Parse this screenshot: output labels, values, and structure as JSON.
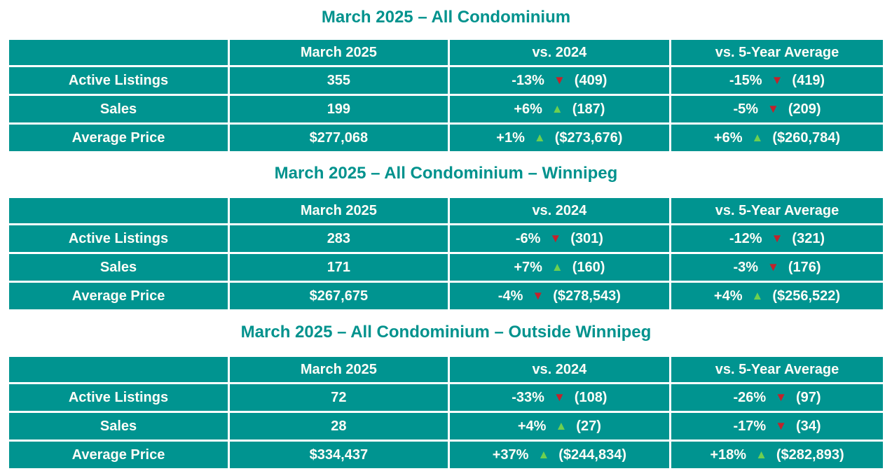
{
  "colors": {
    "cell_teal": "#009490",
    "title_teal": "#00928D",
    "up_arrow_green": "#6ED04F",
    "down_arrow_red": "#C2222B",
    "text": "#FFFDF8"
  },
  "tables": [
    {
      "title": "March 2025 – All Condominium",
      "headers": [
        "",
        "March 2025",
        "vs. 2024",
        "vs. 5-Year Average"
      ],
      "rows": [
        {
          "label": "Active Listings",
          "value": "355",
          "vs2024": {
            "pct": "-13%",
            "arrow": "▼",
            "ref": "(409)"
          },
          "vs5yr": {
            "pct": "-15%",
            "arrow": "▼",
            "ref": "(419)"
          }
        },
        {
          "label": "Sales",
          "value": "199",
          "vs2024": {
            "pct": "+6%",
            "arrow": "▲",
            "ref": "(187)"
          },
          "vs5yr": {
            "pct": "-5%",
            "arrow": "▼",
            "ref": "(209)"
          }
        },
        {
          "label": "Average Price",
          "value": "$277,068",
          "vs2024": {
            "pct": "+1%",
            "arrow": "▲",
            "ref": "($273,676)"
          },
          "vs5yr": {
            "pct": "+6%",
            "arrow": "▲",
            "ref": "($260,784)"
          }
        }
      ]
    },
    {
      "title": "March 2025 – All Condominium – Winnipeg",
      "headers": [
        "",
        "March 2025",
        "vs. 2024",
        "vs. 5-Year Average"
      ],
      "rows": [
        {
          "label": "Active Listings",
          "value": "283",
          "vs2024": {
            "pct": "-6%",
            "arrow": "▼",
            "ref": "(301)"
          },
          "vs5yr": {
            "pct": "-12%",
            "arrow": "▼",
            "ref": "(321)"
          }
        },
        {
          "label": "Sales",
          "value": "171",
          "vs2024": {
            "pct": "+7%",
            "arrow": "▲",
            "ref": "(160)"
          },
          "vs5yr": {
            "pct": "-3%",
            "arrow": "▼",
            "ref": "(176)"
          }
        },
        {
          "label": "Average Price",
          "value": "$267,675",
          "vs2024": {
            "pct": "-4%",
            "arrow": "▼",
            "ref": "($278,543)"
          },
          "vs5yr": {
            "pct": "+4%",
            "arrow": "▲",
            "ref": "($256,522)"
          }
        }
      ]
    },
    {
      "title": "March 2025 – All Condominium – Outside Winnipeg",
      "headers": [
        "",
        "March 2025",
        "vs. 2024",
        "vs. 5-Year Average"
      ],
      "rows": [
        {
          "label": "Active Listings",
          "value": "72",
          "vs2024": {
            "pct": "-33%",
            "arrow": "▼",
            "ref": "(108)"
          },
          "vs5yr": {
            "pct": "-26%",
            "arrow": "▼",
            "ref": "(97)"
          }
        },
        {
          "label": "Sales",
          "value": "28",
          "vs2024": {
            "pct": "+4%",
            "arrow": "▲",
            "ref": "(27)"
          },
          "vs5yr": {
            "pct": "-17%",
            "arrow": "▼",
            "ref": "(34)"
          }
        },
        {
          "label": "Average Price",
          "value": "$334,437",
          "vs2024": {
            "pct": "+37%",
            "arrow": "▲",
            "ref": "($244,834)"
          },
          "vs5yr": {
            "pct": "+18%",
            "arrow": "▲",
            "ref": "($282,893)"
          }
        }
      ]
    }
  ]
}
